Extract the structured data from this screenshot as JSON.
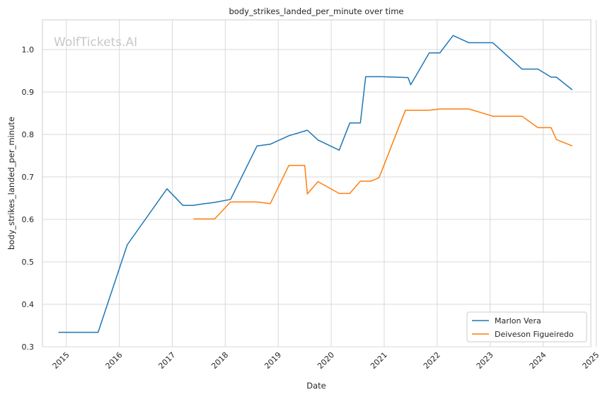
{
  "watermark": "WolfTickets.AI",
  "chart_data": {
    "type": "line",
    "title": "body_strikes_landed_per_minute over time",
    "xlabel": "Date",
    "ylabel": "body_strikes_landed_per_minute",
    "xlim": [
      2014.55,
      2024.9
    ],
    "ylim": [
      0.3,
      1.07
    ],
    "x_ticks": [
      2015,
      2016,
      2017,
      2018,
      2019,
      2020,
      2021,
      2022,
      2023,
      2024,
      2025
    ],
    "x_tick_labels": [
      "2015",
      "2016",
      "2017",
      "2018",
      "2019",
      "2020",
      "2021",
      "2022",
      "2023",
      "2024",
      "2025"
    ],
    "y_ticks": [
      0.3,
      0.4,
      0.5,
      0.6,
      0.7,
      0.8,
      0.9,
      1.0
    ],
    "y_tick_labels": [
      "0.3",
      "0.4",
      "0.5",
      "0.6",
      "0.7",
      "0.8",
      "0.9",
      "1.0"
    ],
    "grid": true,
    "legend_position": "lower-right",
    "series": [
      {
        "name": "Marlon Vera",
        "color": "#1f77b4",
        "x": [
          2014.85,
          2015.6,
          2016.15,
          2016.9,
          2017.2,
          2017.4,
          2017.55,
          2017.8,
          2018.1,
          2018.6,
          2018.85,
          2019.2,
          2019.55,
          2019.75,
          2020.15,
          2020.35,
          2020.55,
          2020.65,
          2020.95,
          2021.45,
          2021.5,
          2021.85,
          2022.05,
          2022.3,
          2022.6,
          2023.05,
          2023.6,
          2023.9,
          2024.15,
          2024.25,
          2024.55
        ],
        "values": [
          0.334,
          0.334,
          0.54,
          0.672,
          0.633,
          0.633,
          0.636,
          0.64,
          0.647,
          0.773,
          0.777,
          0.797,
          0.81,
          0.787,
          0.763,
          0.827,
          0.827,
          0.936,
          0.936,
          0.934,
          0.917,
          0.992,
          0.992,
          1.033,
          1.016,
          1.016,
          0.954,
          0.954,
          0.935,
          0.935,
          0.905
        ]
      },
      {
        "name": "Deiveson Figueiredo",
        "color": "#ff7f0e",
        "x": [
          2017.4,
          2017.8,
          2018.1,
          2018.6,
          2018.85,
          2019.2,
          2019.5,
          2019.55,
          2019.75,
          2020.15,
          2020.35,
          2020.55,
          2020.75,
          2020.9,
          2020.95,
          2021.4,
          2021.85,
          2022.05,
          2022.6,
          2023.05,
          2023.6,
          2023.9,
          2024.15,
          2024.25,
          2024.55
        ],
        "values": [
          0.601,
          0.601,
          0.641,
          0.641,
          0.637,
          0.727,
          0.727,
          0.66,
          0.689,
          0.661,
          0.661,
          0.69,
          0.69,
          0.698,
          0.713,
          0.857,
          0.857,
          0.86,
          0.86,
          0.843,
          0.843,
          0.816,
          0.816,
          0.788,
          0.773
        ]
      }
    ]
  }
}
